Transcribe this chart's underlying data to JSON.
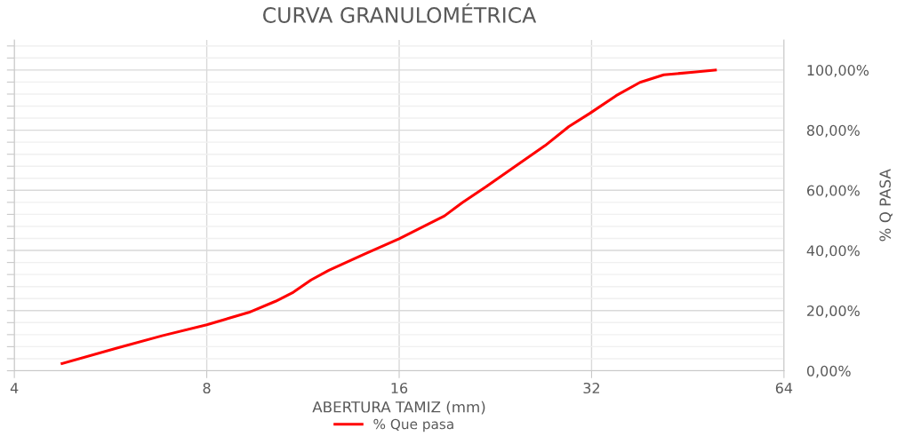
{
  "chart_data": {
    "type": "line",
    "title": "CURVA GRANULOMÉTRICA",
    "xlabel": "ABERTURA TAMIZ (mm)",
    "ylabel": "% Q PASA",
    "x": [
      4.75,
      5.82,
      6.83,
      8.0,
      9.31,
      10.25,
      10.93,
      11.65,
      12.42,
      14.12,
      16.0,
      18.84,
      20.08,
      21.88,
      24.34,
      27.08,
      29.49,
      31.8,
      34.97,
      38.1,
      41.5,
      46.2,
      50
    ],
    "series": [
      {
        "name": "% Que pasa",
        "color": "#ff0000",
        "values": [
          2.4,
          7.7,
          11.7,
          15.3,
          19.4,
          23.1,
          26.1,
          30.2,
          33.4,
          38.8,
          43.9,
          51.5,
          55.9,
          61.2,
          68.1,
          74.9,
          81.2,
          85.6,
          91.5,
          95.9,
          98.4,
          99.3,
          100
        ]
      }
    ],
    "log": "x",
    "xlim": [
      4,
      64
    ],
    "xticks": [
      4,
      8,
      16,
      32,
      64
    ],
    "ylim": [
      0,
      110
    ],
    "yticks": [
      {
        "value": 0,
        "label": "0,00%"
      },
      {
        "value": 4,
        "label": null
      },
      {
        "value": 8,
        "label": null
      },
      {
        "value": 12,
        "label": null
      },
      {
        "value": 16,
        "label": null
      },
      {
        "value": 20,
        "label": "20,00%"
      },
      {
        "value": 24,
        "label": null
      },
      {
        "value": 28,
        "label": null
      },
      {
        "value": 32,
        "label": null
      },
      {
        "value": 36,
        "label": null
      },
      {
        "value": 40,
        "label": "40,00%"
      },
      {
        "value": 44,
        "label": null
      },
      {
        "value": 48,
        "label": null
      },
      {
        "value": 52,
        "label": null
      },
      {
        "value": 56,
        "label": null
      },
      {
        "value": 60,
        "label": "60,00%"
      },
      {
        "value": 64,
        "label": null
      },
      {
        "value": 68,
        "label": null
      },
      {
        "value": 72,
        "label": null
      },
      {
        "value": 76,
        "label": null
      },
      {
        "value": 80,
        "label": "80,00%"
      },
      {
        "value": 84,
        "label": null
      },
      {
        "value": 88,
        "label": null
      },
      {
        "value": 92,
        "label": null
      },
      {
        "value": 96,
        "label": null
      },
      {
        "value": 100,
        "label": "100,00%"
      },
      {
        "value": 104,
        "label": null
      },
      {
        "value": 108,
        "label": null
      }
    ],
    "grid": true,
    "legend": "bottom",
    "line_style": "solid"
  }
}
